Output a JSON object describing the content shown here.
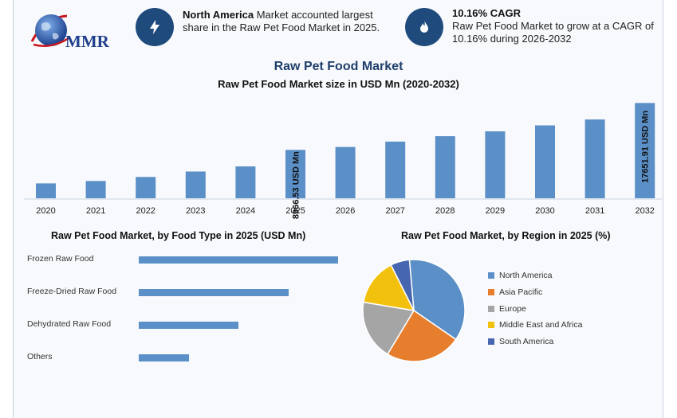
{
  "brand": {
    "logo_text": "MMR"
  },
  "info": [
    {
      "bold": "North America",
      "text": " Market accounted largest share in the Raw Pet Food Market in 2025.",
      "icon": "lightning-icon"
    },
    {
      "bold": "10.16% CAGR",
      "text": "Raw Pet Food Market to grow at a CAGR of 10.16% during 2026-2032",
      "icon": "flame-icon"
    }
  ],
  "title": "Raw Pet Food Market",
  "colors": {
    "bar": "#5b8fc7",
    "icon_bg": "#1f4a7c",
    "title": "#1f3e6c"
  },
  "chart_data": [
    {
      "type": "bar",
      "title": "Raw Pet Food Market size in USD Mn (2020-2032)",
      "categories": [
        "2020",
        "2021",
        "2022",
        "2023",
        "2024",
        "2025",
        "2026",
        "2027",
        "2028",
        "2029",
        "2030",
        "2031",
        "2032"
      ],
      "values": [
        2750,
        3200,
        3950,
        4950,
        5900,
        8966.53,
        9500,
        10500,
        11500,
        12400,
        13500,
        14600,
        17651.91
      ],
      "annotations": [
        {
          "category": "2025",
          "label": "8966.53 USD Mn"
        },
        {
          "category": "2032",
          "label": "17651.91 USD Mn"
        }
      ],
      "ylim": [
        0,
        18000
      ]
    },
    {
      "type": "bar",
      "orientation": "horizontal",
      "title": "Raw Pet Food Market, by Food Type in 2025 (USD Mn)",
      "categories": [
        "Frozen Raw Food",
        "Freeze-Dried Raw Food",
        "Dehydrated Raw Food",
        "Others"
      ],
      "values": [
        4000,
        3000,
        2000,
        1000
      ],
      "xlim": [
        0,
        4000
      ]
    },
    {
      "type": "pie",
      "title": "Raw Pet Food Market, by Region in 2025 (%)",
      "categories": [
        "North America",
        "Asia Pacific",
        "Europe",
        "Middle East and Africa",
        "South America"
      ],
      "values": [
        36,
        24,
        19,
        15,
        6
      ],
      "colors": [
        "#5b8fc7",
        "#e67e2e",
        "#a5a5a5",
        "#f2c10e",
        "#4667b0"
      ],
      "legend": "right"
    }
  ]
}
